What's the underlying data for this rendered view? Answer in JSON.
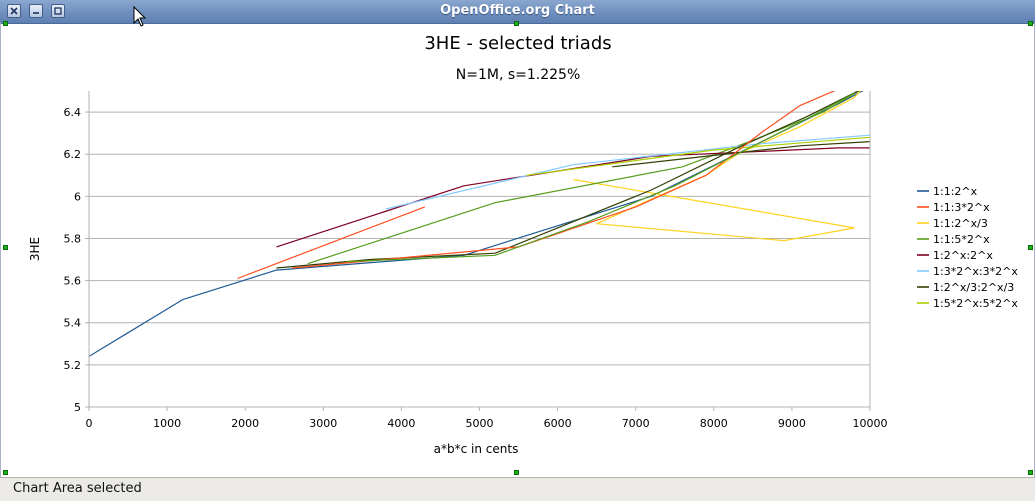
{
  "window": {
    "title": "OpenOffice.org Chart"
  },
  "statusbar": {
    "text": "Chart Area selected"
  },
  "chart_data": {
    "type": "line",
    "title": "3HE - selected triads",
    "subtitle": "N=1M, s=1.225%",
    "xlabel": "a*b*c in cents",
    "ylabel": "3HE",
    "xlim": [
      0,
      10000
    ],
    "ylim": [
      5,
      6.5
    ],
    "xticks": [
      0,
      1000,
      2000,
      3000,
      4000,
      5000,
      6000,
      7000,
      8000,
      9000,
      10000
    ],
    "yticks": [
      5,
      5.2,
      5.4,
      5.6,
      5.8,
      6,
      6.2,
      6.4
    ],
    "grid": "horizontal",
    "legend": "right",
    "series": [
      {
        "name": "1:1:2^x",
        "color": "#1f5a96",
        "points": [
          [
            0,
            5.24
          ],
          [
            1200,
            5.51
          ],
          [
            2400,
            5.65
          ],
          [
            4800,
            5.72
          ],
          [
            7200,
            6.0
          ],
          [
            9600,
            6.44
          ],
          [
            9950,
            6.51
          ]
        ]
      },
      {
        "name": "1:1:3*2^x",
        "color": "#ff4f20",
        "points": [
          [
            1900,
            5.61
          ],
          [
            4300,
            5.95
          ]
        ]
      },
      {
        "name": "1:1:2^x/3",
        "color": "#ffd320",
        "points": [
          [
            6200,
            6.08
          ],
          [
            9800,
            5.85
          ],
          [
            8900,
            5.79
          ],
          [
            6500,
            5.87
          ],
          [
            7100,
            5.97
          ],
          [
            7900,
            6.1
          ],
          [
            8300,
            6.2
          ],
          [
            9100,
            6.33
          ],
          [
            9800,
            6.47
          ],
          [
            9900,
            6.51
          ]
        ]
      },
      {
        "name": "1:1:5*2^x",
        "color": "#579d1c",
        "points": [
          [
            2800,
            5.68
          ],
          [
            5200,
            5.97
          ],
          [
            7600,
            6.14
          ],
          [
            8600,
            6.28
          ],
          [
            9400,
            6.4
          ],
          [
            9900,
            6.51
          ]
        ]
      },
      {
        "name": "1:2^x:2^x",
        "color": "#7e0021",
        "points": [
          [
            2400,
            5.76
          ],
          [
            4800,
            6.05
          ],
          [
            7200,
            6.19
          ],
          [
            9600,
            6.23
          ],
          [
            10000,
            6.23
          ]
        ]
      },
      {
        "name": "1:3*2^x:3*2^x",
        "color": "#83caff",
        "points": [
          [
            3800,
            5.94
          ],
          [
            6200,
            6.15
          ],
          [
            8600,
            6.25
          ],
          [
            10000,
            6.29
          ]
        ]
      },
      {
        "name": "1:2^x/3:2^x/3",
        "color": "#314004",
        "points": [
          [
            6700,
            6.14
          ],
          [
            9100,
            6.24
          ],
          [
            10000,
            6.26
          ]
        ]
      },
      {
        "name": "1:5*2^x:5*2^x",
        "color": "#aecf00",
        "points": [
          [
            5600,
            6.1
          ],
          [
            8000,
            6.22
          ],
          [
            10000,
            6.28
          ]
        ]
      },
      {
        "name": "",
        "color": "#314004",
        "points": [
          [
            2400,
            5.66
          ],
          [
            3600,
            5.7
          ],
          [
            5200,
            5.73
          ],
          [
            6000,
            5.85
          ],
          [
            7200,
            6.03
          ],
          [
            8300,
            6.23
          ],
          [
            9200,
            6.38
          ],
          [
            9900,
            6.51
          ]
        ]
      },
      {
        "name": "",
        "color": "#ff4f20",
        "points": [
          [
            2600,
            5.66
          ],
          [
            5500,
            5.76
          ],
          [
            7000,
            5.95
          ],
          [
            7900,
            6.1
          ],
          [
            8600,
            6.3
          ],
          [
            9100,
            6.43
          ],
          [
            9600,
            6.51
          ]
        ]
      },
      {
        "name": "",
        "color": "#579d1c",
        "points": [
          [
            3300,
            5.69
          ],
          [
            5200,
            5.72
          ],
          [
            6400,
            5.88
          ],
          [
            7500,
            6.05
          ],
          [
            8400,
            6.22
          ],
          [
            9100,
            6.35
          ],
          [
            9800,
            6.49
          ]
        ]
      }
    ]
  }
}
